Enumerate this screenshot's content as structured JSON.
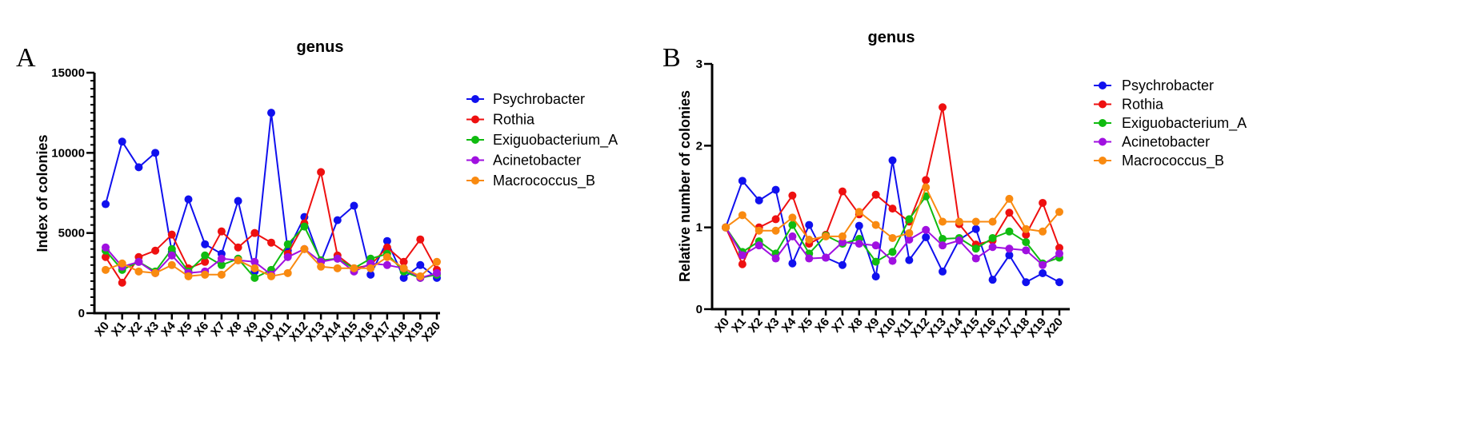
{
  "figure": {
    "panels": [
      "A",
      "B"
    ]
  },
  "chart_data": [
    {
      "type": "line",
      "panel": "A",
      "title": "genus",
      "xlabel": "",
      "ylabel": "Index of colonies",
      "ylim": [
        0,
        15000
      ],
      "yticks": [
        0,
        5000,
        10000,
        15000
      ],
      "ytick_labels": [
        "0",
        "5000",
        "10000",
        "15000"
      ],
      "minor_ticks_per_major": 10,
      "categories": [
        "X0",
        "X1",
        "X2",
        "X3",
        "X4",
        "X5",
        "X6",
        "X7",
        "X8",
        "X9",
        "X10",
        "X11",
        "X12",
        "X13",
        "X14",
        "X15",
        "X16",
        "X17",
        "X18",
        "X19",
        "X20"
      ],
      "legend_position": "right",
      "grid": false,
      "series": [
        {
          "name": "Psychrobacter",
          "color": "#1010ee",
          "values": [
            6800,
            10700,
            9100,
            10000,
            3800,
            7100,
            4300,
            3700,
            7000,
            2600,
            12500,
            3900,
            6000,
            3200,
            5800,
            6700,
            2400,
            4500,
            2200,
            3000,
            2200
          ]
        },
        {
          "name": "Rothia",
          "color": "#ee1010",
          "values": [
            3500,
            1900,
            3500,
            3900,
            4900,
            2800,
            3200,
            5100,
            4100,
            5000,
            4400,
            3700,
            5600,
            8800,
            3600,
            2800,
            3000,
            4100,
            3200,
            4600,
            2700
          ]
        },
        {
          "name": "Exiguobacterium_A",
          "color": "#10bb10",
          "values": [
            3900,
            2700,
            3200,
            2600,
            4000,
            2600,
            3600,
            3000,
            3400,
            2200,
            2700,
            4300,
            5400,
            3300,
            3400,
            2800,
            3400,
            3700,
            2600,
            2200,
            2400
          ]
        },
        {
          "name": "Acinetobacter",
          "color": "#a010e0",
          "values": [
            4100,
            2900,
            3200,
            2500,
            3600,
            2500,
            2600,
            3400,
            3300,
            3200,
            2400,
            3500,
            4000,
            3200,
            3400,
            2600,
            3100,
            3000,
            2800,
            2200,
            2500
          ]
        },
        {
          "name": "Macrococcus_B",
          "color": "#f98a10",
          "values": [
            2700,
            3100,
            2600,
            2500,
            3000,
            2300,
            2400,
            2400,
            3300,
            2800,
            2300,
            2500,
            4000,
            2900,
            2800,
            2800,
            2800,
            3500,
            2800,
            2300,
            3200
          ]
        }
      ]
    },
    {
      "type": "line",
      "panel": "B",
      "title": "genus",
      "xlabel": "",
      "ylabel": "Relative number of colonies",
      "ylim": [
        0,
        3
      ],
      "yticks": [
        0,
        1,
        2,
        3
      ],
      "ytick_labels": [
        "0",
        "1",
        "2",
        "3"
      ],
      "minor_ticks_per_major": 0,
      "categories": [
        "X0",
        "X1",
        "X2",
        "X3",
        "X4",
        "X5",
        "X6",
        "X7",
        "X8",
        "X9",
        "X10",
        "X11",
        "X12",
        "X13",
        "X14",
        "X15",
        "X16",
        "X17",
        "X18",
        "X19",
        "X20"
      ],
      "legend_position": "right",
      "grid": false,
      "series": [
        {
          "name": "Psychrobacter",
          "color": "#1010ee",
          "values": [
            1.0,
            1.57,
            1.33,
            1.46,
            0.56,
            1.03,
            0.63,
            0.54,
            1.02,
            0.4,
            1.82,
            0.6,
            0.88,
            0.46,
            0.85,
            0.98,
            0.36,
            0.66,
            0.33,
            0.44,
            0.33
          ]
        },
        {
          "name": "Rothia",
          "color": "#ee1010",
          "values": [
            1.0,
            0.55,
            1.0,
            1.1,
            1.39,
            0.8,
            0.91,
            1.44,
            1.16,
            1.4,
            1.23,
            1.07,
            1.58,
            2.47,
            1.04,
            0.79,
            0.84,
            1.18,
            0.91,
            1.3,
            0.75
          ]
        },
        {
          "name": "Exiguobacterium_A",
          "color": "#10bb10",
          "values": [
            1.0,
            0.7,
            0.83,
            0.68,
            1.03,
            0.68,
            0.9,
            0.8,
            0.86,
            0.58,
            0.7,
            1.1,
            1.38,
            0.86,
            0.87,
            0.74,
            0.87,
            0.95,
            0.82,
            0.56,
            0.63
          ]
        },
        {
          "name": "Acinetobacter",
          "color": "#a010e0",
          "values": [
            1.0,
            0.66,
            0.78,
            0.62,
            0.89,
            0.62,
            0.63,
            0.82,
            0.8,
            0.78,
            0.59,
            0.85,
            0.97,
            0.78,
            0.84,
            0.62,
            0.76,
            0.74,
            0.72,
            0.54,
            0.68
          ]
        },
        {
          "name": "Macrococcus_B",
          "color": "#f98a10",
          "values": [
            1.0,
            1.15,
            0.96,
            0.96,
            1.12,
            0.85,
            0.89,
            0.89,
            1.19,
            1.03,
            0.87,
            0.93,
            1.49,
            1.07,
            1.07,
            1.07,
            1.07,
            1.35,
            0.98,
            0.95,
            1.19
          ]
        }
      ]
    }
  ]
}
